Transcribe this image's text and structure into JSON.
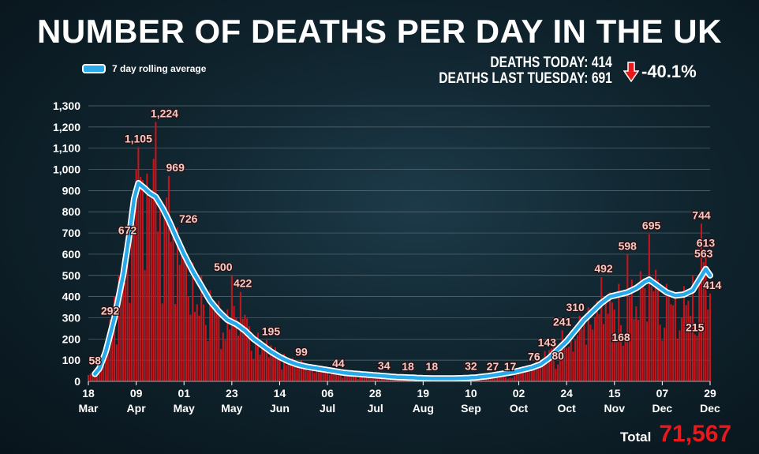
{
  "header": {
    "title": "NUMBER OF DEATHS PER DAY IN THE UK",
    "legend_label": "7 day rolling average",
    "deaths_today_label": "DEATHS TODAY: 414",
    "deaths_last_tuesday_label": "DEATHS LAST TUESDAY: 691",
    "change_label": "-40.1%"
  },
  "footer": {
    "total_label": "Total",
    "total_value": "71,567"
  },
  "colors": {
    "bar": "#c4161c",
    "average_line": "#27a9ea",
    "arrow": "#e8181b",
    "total": "#e8181b"
  },
  "chart_data": {
    "type": "bar",
    "title": "NUMBER OF DEATHS PER DAY IN THE UK",
    "xlabel": "",
    "ylabel": "",
    "ylim": [
      0,
      1300
    ],
    "yticks": [
      "0",
      "100",
      "200",
      "300",
      "400",
      "500",
      "600",
      "700",
      "800",
      "900",
      "1,000",
      "1,100",
      "1,200",
      "1,300"
    ],
    "grid": true,
    "x_start_date": "2020-03-18",
    "x_days": 287,
    "xtick_labels": [
      {
        "day": 0,
        "top": "18",
        "bottom": "Mar"
      },
      {
        "day": 22,
        "top": "09",
        "bottom": "Apr"
      },
      {
        "day": 44,
        "top": "01",
        "bottom": "May"
      },
      {
        "day": 66,
        "top": "23",
        "bottom": "May"
      },
      {
        "day": 88,
        "top": "14",
        "bottom": "Jun"
      },
      {
        "day": 110,
        "top": "06",
        "bottom": "Jul"
      },
      {
        "day": 132,
        "top": "28",
        "bottom": "Jul"
      },
      {
        "day": 154,
        "top": "19",
        "bottom": "Aug"
      },
      {
        "day": 176,
        "top": "10",
        "bottom": "Sep"
      },
      {
        "day": 198,
        "top": "02",
        "bottom": "Oct"
      },
      {
        "day": 220,
        "top": "24",
        "bottom": "Oct"
      },
      {
        "day": 242,
        "top": "15",
        "bottom": "Nov"
      },
      {
        "day": 264,
        "top": "07",
        "bottom": "Dec"
      },
      {
        "day": 286,
        "top": "29",
        "bottom": "Dec"
      }
    ],
    "daily_deaths_keypoints": [
      [
        0,
        30
      ],
      [
        2,
        45
      ],
      [
        4,
        58
      ],
      [
        6,
        90
      ],
      [
        8,
        150
      ],
      [
        10,
        292
      ],
      [
        12,
        400
      ],
      [
        14,
        500
      ],
      [
        16,
        580
      ],
      [
        18,
        672
      ],
      [
        20,
        850
      ],
      [
        22,
        1000
      ],
      [
        23,
        1105
      ],
      [
        25,
        950
      ],
      [
        27,
        980
      ],
      [
        29,
        890
      ],
      [
        31,
        1224
      ],
      [
        33,
        860
      ],
      [
        35,
        780
      ],
      [
        37,
        969
      ],
      [
        39,
        700
      ],
      [
        41,
        726
      ],
      [
        44,
        620
      ],
      [
        48,
        560
      ],
      [
        52,
        500
      ],
      [
        56,
        430
      ],
      [
        60,
        380
      ],
      [
        64,
        340
      ],
      [
        66,
        500
      ],
      [
        68,
        300
      ],
      [
        70,
        422
      ],
      [
        74,
        260
      ],
      [
        78,
        230
      ],
      [
        82,
        195
      ],
      [
        86,
        160
      ],
      [
        90,
        130
      ],
      [
        94,
        110
      ],
      [
        98,
        99
      ],
      [
        102,
        80
      ],
      [
        106,
        68
      ],
      [
        110,
        55
      ],
      [
        114,
        44
      ],
      [
        118,
        38
      ],
      [
        122,
        32
      ],
      [
        126,
        30
      ],
      [
        130,
        34
      ],
      [
        134,
        26
      ],
      [
        138,
        22
      ],
      [
        142,
        18
      ],
      [
        146,
        16
      ],
      [
        150,
        14
      ],
      [
        154,
        18
      ],
      [
        158,
        12
      ],
      [
        162,
        13
      ],
      [
        166,
        15
      ],
      [
        170,
        18
      ],
      [
        174,
        22
      ],
      [
        178,
        32
      ],
      [
        182,
        27
      ],
      [
        186,
        30
      ],
      [
        190,
        35
      ],
      [
        194,
        17
      ],
      [
        198,
        60
      ],
      [
        202,
        76
      ],
      [
        206,
        100
      ],
      [
        210,
        143
      ],
      [
        214,
        180
      ],
      [
        216,
        80
      ],
      [
        218,
        241
      ],
      [
        222,
        200
      ],
      [
        226,
        310
      ],
      [
        230,
        350
      ],
      [
        234,
        380
      ],
      [
        236,
        492
      ],
      [
        240,
        420
      ],
      [
        244,
        460
      ],
      [
        246,
        168
      ],
      [
        248,
        598
      ],
      [
        250,
        480
      ],
      [
        254,
        520
      ],
      [
        256,
        440
      ],
      [
        258,
        695
      ],
      [
        262,
        480
      ],
      [
        266,
        460
      ],
      [
        270,
        420
      ],
      [
        274,
        450
      ],
      [
        278,
        500
      ],
      [
        280,
        215
      ],
      [
        282,
        744
      ],
      [
        283,
        563
      ],
      [
        284,
        613
      ],
      [
        286,
        414
      ]
    ],
    "rolling_average_keypoints": [
      [
        3,
        35
      ],
      [
        5,
        60
      ],
      [
        8,
        140
      ],
      [
        12,
        300
      ],
      [
        16,
        500
      ],
      [
        19,
        700
      ],
      [
        21,
        860
      ],
      [
        23,
        935
      ],
      [
        26,
        910
      ],
      [
        28,
        890
      ],
      [
        31,
        870
      ],
      [
        34,
        820
      ],
      [
        37,
        760
      ],
      [
        40,
        690
      ],
      [
        44,
        600
      ],
      [
        48,
        520
      ],
      [
        52,
        450
      ],
      [
        56,
        380
      ],
      [
        60,
        330
      ],
      [
        64,
        290
      ],
      [
        68,
        270
      ],
      [
        72,
        240
      ],
      [
        76,
        200
      ],
      [
        80,
        170
      ],
      [
        84,
        140
      ],
      [
        88,
        115
      ],
      [
        92,
        95
      ],
      [
        96,
        80
      ],
      [
        100,
        70
      ],
      [
        106,
        60
      ],
      [
        112,
        50
      ],
      [
        118,
        40
      ],
      [
        124,
        35
      ],
      [
        130,
        30
      ],
      [
        136,
        25
      ],
      [
        142,
        20
      ],
      [
        148,
        18
      ],
      [
        154,
        15
      ],
      [
        160,
        14
      ],
      [
        166,
        14
      ],
      [
        172,
        15
      ],
      [
        178,
        18
      ],
      [
        184,
        25
      ],
      [
        190,
        35
      ],
      [
        196,
        45
      ],
      [
        200,
        55
      ],
      [
        204,
        65
      ],
      [
        208,
        80
      ],
      [
        212,
        110
      ],
      [
        216,
        150
      ],
      [
        220,
        190
      ],
      [
        224,
        240
      ],
      [
        228,
        290
      ],
      [
        232,
        330
      ],
      [
        236,
        370
      ],
      [
        240,
        400
      ],
      [
        244,
        410
      ],
      [
        248,
        420
      ],
      [
        252,
        440
      ],
      [
        256,
        470
      ],
      [
        258,
        480
      ],
      [
        262,
        450
      ],
      [
        266,
        420
      ],
      [
        270,
        405
      ],
      [
        274,
        410
      ],
      [
        278,
        430
      ],
      [
        281,
        480
      ],
      [
        284,
        530
      ],
      [
        286,
        500
      ]
    ],
    "data_labels": [
      {
        "day": 3,
        "value": 58,
        "label": "58"
      },
      {
        "day": 10,
        "value": 292,
        "label": "292"
      },
      {
        "day": 18,
        "value": 672,
        "label": "672"
      },
      {
        "day": 23,
        "value": 1105,
        "label": "1,105"
      },
      {
        "day": 35,
        "value": 1224,
        "label": "1,224"
      },
      {
        "day": 40,
        "value": 969,
        "label": "969"
      },
      {
        "day": 46,
        "value": 726,
        "label": "726"
      },
      {
        "day": 62,
        "value": 500,
        "label": "500"
      },
      {
        "day": 71,
        "value": 422,
        "label": "422"
      },
      {
        "day": 84,
        "value": 195,
        "label": "195"
      },
      {
        "day": 98,
        "value": 99,
        "label": "99"
      },
      {
        "day": 115,
        "value": 44,
        "label": "44"
      },
      {
        "day": 136,
        "value": 34,
        "label": "34"
      },
      {
        "day": 147,
        "value": 18,
        "label": "18"
      },
      {
        "day": 158,
        "value": 18,
        "label": "18"
      },
      {
        "day": 176,
        "value": 32,
        "label": "32"
      },
      {
        "day": 186,
        "value": 27,
        "label": "27"
      },
      {
        "day": 194,
        "value": 17,
        "label": "17"
      },
      {
        "day": 205,
        "value": 76,
        "label": "76"
      },
      {
        "day": 211,
        "value": 143,
        "label": "143"
      },
      {
        "day": 216,
        "value": 80,
        "label": "80"
      },
      {
        "day": 218,
        "value": 241,
        "label": "241"
      },
      {
        "day": 224,
        "value": 310,
        "label": "310"
      },
      {
        "day": 237,
        "value": 492,
        "label": "492"
      },
      {
        "day": 245,
        "value": 168,
        "label": "168"
      },
      {
        "day": 248,
        "value": 598,
        "label": "598"
      },
      {
        "day": 259,
        "value": 695,
        "label": "695"
      },
      {
        "day": 279,
        "value": 215,
        "label": "215"
      },
      {
        "day": 282,
        "value": 744,
        "label": "744"
      },
      {
        "day": 283,
        "value": 563,
        "label": "563"
      },
      {
        "day": 284,
        "value": 613,
        "label": "613"
      },
      {
        "day": 287,
        "value": 414,
        "label": "414"
      }
    ]
  }
}
